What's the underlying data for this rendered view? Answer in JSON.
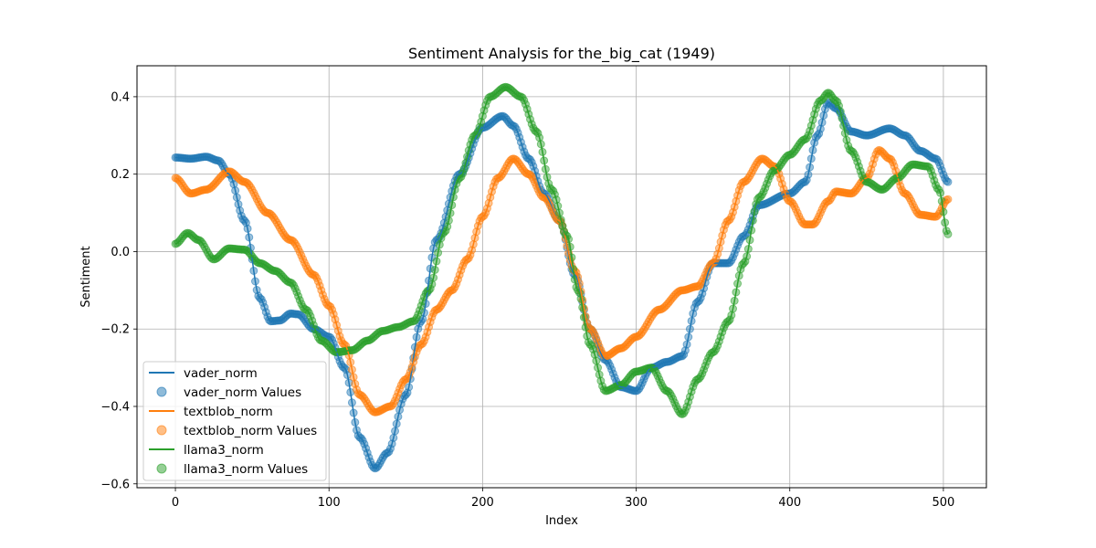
{
  "chart_data": {
    "type": "line",
    "title": "Sentiment Analysis for the_big_cat (1949)",
    "xlabel": "Index",
    "ylabel": "Sentiment",
    "xlim": [
      -25,
      528
    ],
    "ylim": [
      -0.61,
      0.48
    ],
    "xticks": [
      0,
      100,
      200,
      300,
      400,
      500
    ],
    "yticks": [
      -0.6,
      -0.4,
      -0.2,
      0.0,
      0.2,
      0.4
    ],
    "grid": true,
    "legend_position": "lower-left",
    "x_max": 504,
    "legend": [
      "vader_norm",
      "vader_norm Values",
      "textblob_norm",
      "textblob_norm Values",
      "llama3_norm",
      "llama3_norm Values"
    ],
    "series": [
      {
        "name": "vader_norm",
        "color": "#1f77b4",
        "points": [
          [
            0,
            0.243
          ],
          [
            10,
            0.24
          ],
          [
            20,
            0.245
          ],
          [
            28,
            0.235
          ],
          [
            35,
            0.2
          ],
          [
            45,
            0.08
          ],
          [
            55,
            -0.12
          ],
          [
            62,
            -0.18
          ],
          [
            68,
            -0.178
          ],
          [
            75,
            -0.16
          ],
          [
            80,
            -0.162
          ],
          [
            90,
            -0.2
          ],
          [
            100,
            -0.22
          ],
          [
            110,
            -0.3
          ],
          [
            120,
            -0.48
          ],
          [
            130,
            -0.56
          ],
          [
            138,
            -0.52
          ],
          [
            150,
            -0.37
          ],
          [
            160,
            -0.18
          ],
          [
            170,
            0.03
          ],
          [
            185,
            0.2
          ],
          [
            200,
            0.32
          ],
          [
            213,
            0.35
          ],
          [
            220,
            0.325
          ],
          [
            230,
            0.24
          ],
          [
            240,
            0.15
          ],
          [
            250,
            0.08
          ],
          [
            260,
            -0.06
          ],
          [
            270,
            -0.2
          ],
          [
            280,
            -0.28
          ],
          [
            290,
            -0.35
          ],
          [
            300,
            -0.36
          ],
          [
            310,
            -0.3
          ],
          [
            320,
            -0.285
          ],
          [
            330,
            -0.27
          ],
          [
            340,
            -0.13
          ],
          [
            350,
            -0.03
          ],
          [
            360,
            -0.03
          ],
          [
            370,
            0.04
          ],
          [
            380,
            0.12
          ],
          [
            400,
            0.15
          ],
          [
            410,
            0.18
          ],
          [
            418,
            0.3
          ],
          [
            425,
            0.385
          ],
          [
            430,
            0.37
          ],
          [
            440,
            0.31
          ],
          [
            450,
            0.3
          ],
          [
            465,
            0.318
          ],
          [
            475,
            0.3
          ],
          [
            485,
            0.26
          ],
          [
            495,
            0.24
          ],
          [
            503,
            0.18
          ]
        ]
      },
      {
        "name": "textblob_norm",
        "color": "#ff7f0e",
        "points": [
          [
            0,
            0.19
          ],
          [
            10,
            0.15
          ],
          [
            20,
            0.16
          ],
          [
            35,
            0.207
          ],
          [
            45,
            0.18
          ],
          [
            60,
            0.1
          ],
          [
            75,
            0.03
          ],
          [
            90,
            -0.06
          ],
          [
            100,
            -0.14
          ],
          [
            110,
            -0.24
          ],
          [
            120,
            -0.37
          ],
          [
            130,
            -0.415
          ],
          [
            140,
            -0.4
          ],
          [
            150,
            -0.33
          ],
          [
            160,
            -0.24
          ],
          [
            170,
            -0.15
          ],
          [
            180,
            -0.1
          ],
          [
            190,
            -0.02
          ],
          [
            200,
            0.09
          ],
          [
            210,
            0.19
          ],
          [
            220,
            0.24
          ],
          [
            230,
            0.2
          ],
          [
            240,
            0.14
          ],
          [
            250,
            0.08
          ],
          [
            260,
            -0.05
          ],
          [
            270,
            -0.2
          ],
          [
            280,
            -0.27
          ],
          [
            290,
            -0.25
          ],
          [
            300,
            -0.22
          ],
          [
            315,
            -0.15
          ],
          [
            330,
            -0.1
          ],
          [
            340,
            -0.09
          ],
          [
            350,
            -0.03
          ],
          [
            360,
            0.08
          ],
          [
            370,
            0.18
          ],
          [
            382,
            0.24
          ],
          [
            390,
            0.22
          ],
          [
            400,
            0.13
          ],
          [
            410,
            0.07
          ],
          [
            415,
            0.07
          ],
          [
            425,
            0.13
          ],
          [
            430,
            0.155
          ],
          [
            440,
            0.15
          ],
          [
            450,
            0.19
          ],
          [
            458,
            0.262
          ],
          [
            465,
            0.24
          ],
          [
            475,
            0.15
          ],
          [
            485,
            0.095
          ],
          [
            495,
            0.09
          ],
          [
            503,
            0.135
          ]
        ]
      },
      {
        "name": "llama3_norm",
        "color": "#2ca02c",
        "points": [
          [
            0,
            0.02
          ],
          [
            8,
            0.048
          ],
          [
            15,
            0.03
          ],
          [
            25,
            -0.02
          ],
          [
            35,
            0.008
          ],
          [
            45,
            0.005
          ],
          [
            55,
            -0.03
          ],
          [
            65,
            -0.05
          ],
          [
            75,
            -0.08
          ],
          [
            85,
            -0.15
          ],
          [
            95,
            -0.23
          ],
          [
            105,
            -0.26
          ],
          [
            115,
            -0.255
          ],
          [
            125,
            -0.23
          ],
          [
            135,
            -0.205
          ],
          [
            145,
            -0.195
          ],
          [
            155,
            -0.18
          ],
          [
            165,
            -0.1
          ],
          [
            175,
            0.05
          ],
          [
            185,
            0.19
          ],
          [
            195,
            0.3
          ],
          [
            205,
            0.4
          ],
          [
            215,
            0.425
          ],
          [
            225,
            0.4
          ],
          [
            235,
            0.31
          ],
          [
            245,
            0.16
          ],
          [
            255,
            0.04
          ],
          [
            262,
            -0.1
          ],
          [
            270,
            -0.24
          ],
          [
            280,
            -0.36
          ],
          [
            290,
            -0.345
          ],
          [
            300,
            -0.31
          ],
          [
            310,
            -0.3
          ],
          [
            320,
            -0.36
          ],
          [
            330,
            -0.42
          ],
          [
            340,
            -0.33
          ],
          [
            350,
            -0.26
          ],
          [
            360,
            -0.18
          ],
          [
            370,
            -0.03
          ],
          [
            380,
            0.14
          ],
          [
            390,
            0.21
          ],
          [
            400,
            0.25
          ],
          [
            410,
            0.29
          ],
          [
            420,
            0.39
          ],
          [
            425,
            0.41
          ],
          [
            430,
            0.39
          ],
          [
            440,
            0.26
          ],
          [
            450,
            0.18
          ],
          [
            460,
            0.16
          ],
          [
            470,
            0.19
          ],
          [
            480,
            0.225
          ],
          [
            490,
            0.22
          ],
          [
            497,
            0.16
          ],
          [
            503,
            0.045
          ]
        ]
      }
    ]
  }
}
